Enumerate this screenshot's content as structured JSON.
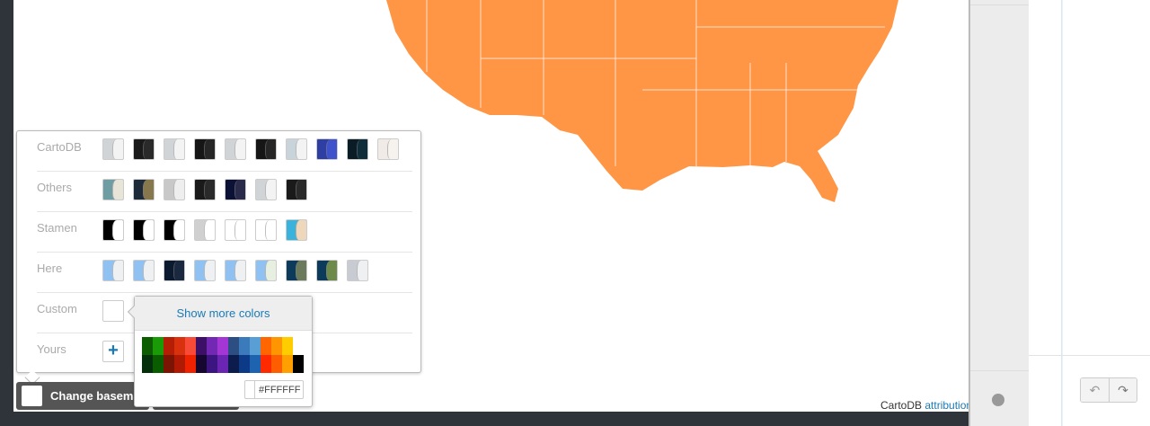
{
  "map": {
    "fill": "#ff9646",
    "attribution": {
      "prefix": "CartoDB",
      "link": "attribution"
    }
  },
  "basemaps": {
    "rows": [
      {
        "label": "CartoDB",
        "thumbs": [
          [
            "#d0d4d6",
            "#f3f3f3"
          ],
          [
            "#1a1a1a",
            "#2a2a2a"
          ],
          [
            "#d0d4d6",
            "#f3f3f3"
          ],
          [
            "#161616",
            "#262626"
          ],
          [
            "#d0d4d6",
            "#f3f3f3"
          ],
          [
            "#161616",
            "#262626"
          ],
          [
            "#c9d3da",
            "#f3f3f3"
          ],
          [
            "#2e3ea3",
            "#3f52cc"
          ],
          [
            "#0a1d26",
            "#0f2d3b"
          ],
          [
            "#f0ebe6",
            "#f6f3ef"
          ]
        ]
      },
      {
        "label": "Others",
        "thumbs": [
          [
            "#6e9ea4",
            "#e8e4d8"
          ],
          [
            "#1c2a3a",
            "#86774c"
          ],
          [
            "#c8c8c8",
            "#eeeeee"
          ],
          [
            "#1a1a1a",
            "#2a2a2a"
          ],
          [
            "#0c1236",
            "#2a2a4a"
          ],
          [
            "#d0d4d6",
            "#f3f3f3"
          ],
          [
            "#1a1a1a",
            "#2a2a2a"
          ]
        ]
      },
      {
        "label": "Stamen",
        "thumbs": [
          [
            "#000000",
            "#ffffff"
          ],
          [
            "#000000",
            "#ffffff"
          ],
          [
            "#000000",
            "#ffffff"
          ],
          [
            "#d0d0d0",
            "#ffffff"
          ],
          [
            "#ffffff",
            "#ffffff"
          ],
          [
            "#ffffff",
            "#ffffff"
          ],
          [
            "#39b3dc",
            "#eed7bb"
          ]
        ]
      },
      {
        "label": "Here",
        "thumbs": [
          [
            "#8fc2f2",
            "#eef0f2"
          ],
          [
            "#8fc2f2",
            "#eef0f2"
          ],
          [
            "#0c1a30",
            "#1a2840"
          ],
          [
            "#8fc2f2",
            "#eef0f2"
          ],
          [
            "#8fc2f2",
            "#eef0f2"
          ],
          [
            "#8fc2f2",
            "#e6efe0"
          ],
          [
            "#0c3a5a",
            "#6b7a5a"
          ],
          [
            "#0c3a5a",
            "#6e8a4a"
          ],
          [
            "#c8ccd2",
            "#eef0f2"
          ]
        ]
      },
      {
        "label": "Custom"
      },
      {
        "label": "Yours",
        "add": "+"
      }
    ]
  },
  "color_picker": {
    "show_more": "Show more colors",
    "palette": [
      [
        "#0c5c00",
        "#1a9a06",
        "#b51e05",
        "#d9300e",
        "#f74b38",
        "#3d1067",
        "#7228b2",
        "#a536d6",
        "#2c4e82",
        "#3b7bbc",
        "#5a9ed6",
        "#ff6600",
        "#ff9500",
        "#ffcc00",
        ""
      ],
      [
        "#03300a",
        "#0a5c00",
        "#7c1403",
        "#b01a05",
        "#ef2200",
        "#150730",
        "#3c1580",
        "#6a26b2",
        "#0c1c4d",
        "#0c3a86",
        "#1e63b0",
        "#ff2a00",
        "#ff5e00",
        "#ff9f00",
        "#000000"
      ]
    ],
    "hex_value": "#FFFFFF"
  },
  "change_basemap": {
    "label": "Change basemap",
    "color": "#FFFFFF"
  },
  "toolbar": {
    "undo": "↶",
    "redo": "↷"
  }
}
